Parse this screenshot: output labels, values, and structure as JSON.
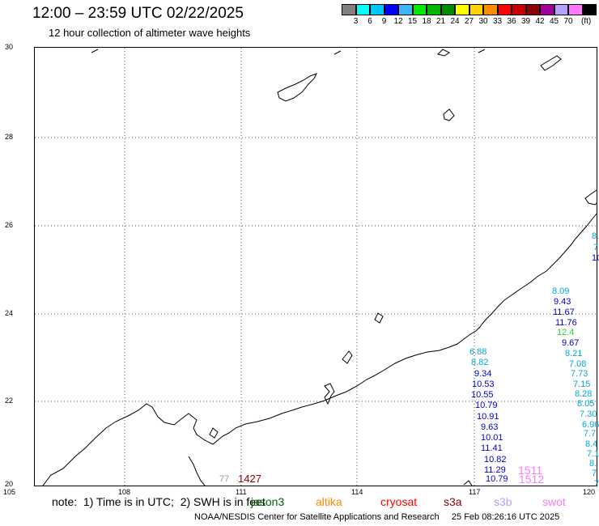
{
  "header": {
    "title": "12:00 – 23:59 UTC 02/22/2025",
    "subtitle": "12 hour collection of altimeter wave heights"
  },
  "colorbar": {
    "colors": [
      "#808080",
      "#00ffff",
      "#00c8ff",
      "#0000ff",
      "#3cb4ff",
      "#00e600",
      "#00b400",
      "#008c00",
      "#ffff00",
      "#ffd200",
      "#ff8c00",
      "#ff0000",
      "#c80000",
      "#8b0000",
      "#a000a0",
      "#b4a0ff",
      "#ff78ff",
      "#000000"
    ],
    "labels": [
      "3",
      "6",
      "9",
      "12",
      "15",
      "18",
      "21",
      "24",
      "27",
      "30",
      "33",
      "36",
      "39",
      "42",
      "45",
      "70"
    ],
    "unit": "(ft)"
  },
  "map": {
    "lat_labels": [
      "30",
      "28",
      "26",
      "24",
      "22",
      "20"
    ],
    "lon_labels": [
      "105",
      "108",
      "111",
      "114",
      "117",
      "120"
    ]
  },
  "observations": {
    "track_a": [
      {
        "text": "8.09",
        "color": "#00a8d8"
      },
      {
        "text": "9.43",
        "color": "#0000c8"
      },
      {
        "text": "11.67",
        "color": "#0000c8"
      },
      {
        "text": "11.76",
        "color": "#0000c8"
      },
      {
        "text": "12.4",
        "color": "#33cc33"
      },
      {
        "text": "9.67",
        "color": "#0000c8"
      },
      {
        "text": "8.21",
        "color": "#00a8d8"
      },
      {
        "text": "7.08",
        "color": "#00a8d8"
      },
      {
        "text": "7.73",
        "color": "#00a8d8"
      },
      {
        "text": "7.15",
        "color": "#00a8d8"
      },
      {
        "text": "8.28",
        "color": "#00a8d8"
      },
      {
        "text": "8.05",
        "color": "#00a8d8"
      },
      {
        "text": "7.30",
        "color": "#00a8d8"
      },
      {
        "text": "6.96",
        "color": "#00a8d8"
      },
      {
        "text": "7.7",
        "color": "#00a8d8"
      },
      {
        "text": "8.4",
        "color": "#00a8d8"
      },
      {
        "text": "7.1",
        "color": "#00a8d8"
      },
      {
        "text": "8.",
        "color": "#00a8d8"
      },
      {
        "text": "7",
        "color": "#00a8d8"
      },
      {
        "text": "7",
        "color": "#00a8d8"
      }
    ],
    "track_b": [
      {
        "text": "6.88",
        "color": "#00a8d8"
      },
      {
        "text": "8.82",
        "color": "#00a8d8"
      },
      {
        "text": "9.34",
        "color": "#0000c8"
      },
      {
        "text": "10.53",
        "color": "#0000c8"
      },
      {
        "text": "10.55",
        "color": "#0000c8"
      },
      {
        "text": "10.79",
        "color": "#0000c8"
      },
      {
        "text": "10.91",
        "color": "#0000c8"
      },
      {
        "text": "9.63",
        "color": "#0000c8"
      },
      {
        "text": "10.01",
        "color": "#0000c8"
      },
      {
        "text": "11.41",
        "color": "#0000c8"
      },
      {
        "text": "10.82",
        "color": "#0000c8"
      },
      {
        "text": "11.29",
        "color": "#0000c8"
      },
      {
        "text": "10.79",
        "color": "#0000c8"
      }
    ],
    "edge": [
      {
        "text": "8.",
        "color": "#00a8d8"
      },
      {
        "text": "7",
        "color": "#00a8d8"
      },
      {
        "text": "10",
        "color": "#0000c8"
      }
    ],
    "times": [
      {
        "text": "1427",
        "color": "#8b0000"
      },
      {
        "text": "1511",
        "color": "#ff78ff"
      },
      {
        "text": "1512",
        "color": "#ff78ff"
      },
      {
        "text": "77",
        "color": "#999999"
      }
    ]
  },
  "footer": {
    "note": "note:  1) Time is in UTC;  2) SWH is in feet",
    "legend": [
      {
        "text": "jason3",
        "color": "#006400"
      },
      {
        "text": "altika",
        "color": "#ff8c00"
      },
      {
        "text": "cryosat",
        "color": "#ff0000"
      },
      {
        "text": "s3a",
        "color": "#8b0000"
      },
      {
        "text": "s3b",
        "color": "#b4a0ff"
      },
      {
        "text": "swot",
        "color": "#ff78ff"
      }
    ],
    "credit": "NOAA/NESDIS Center for Satellite Applications and Research     25 Feb 08:26:16 UTC 2025"
  }
}
